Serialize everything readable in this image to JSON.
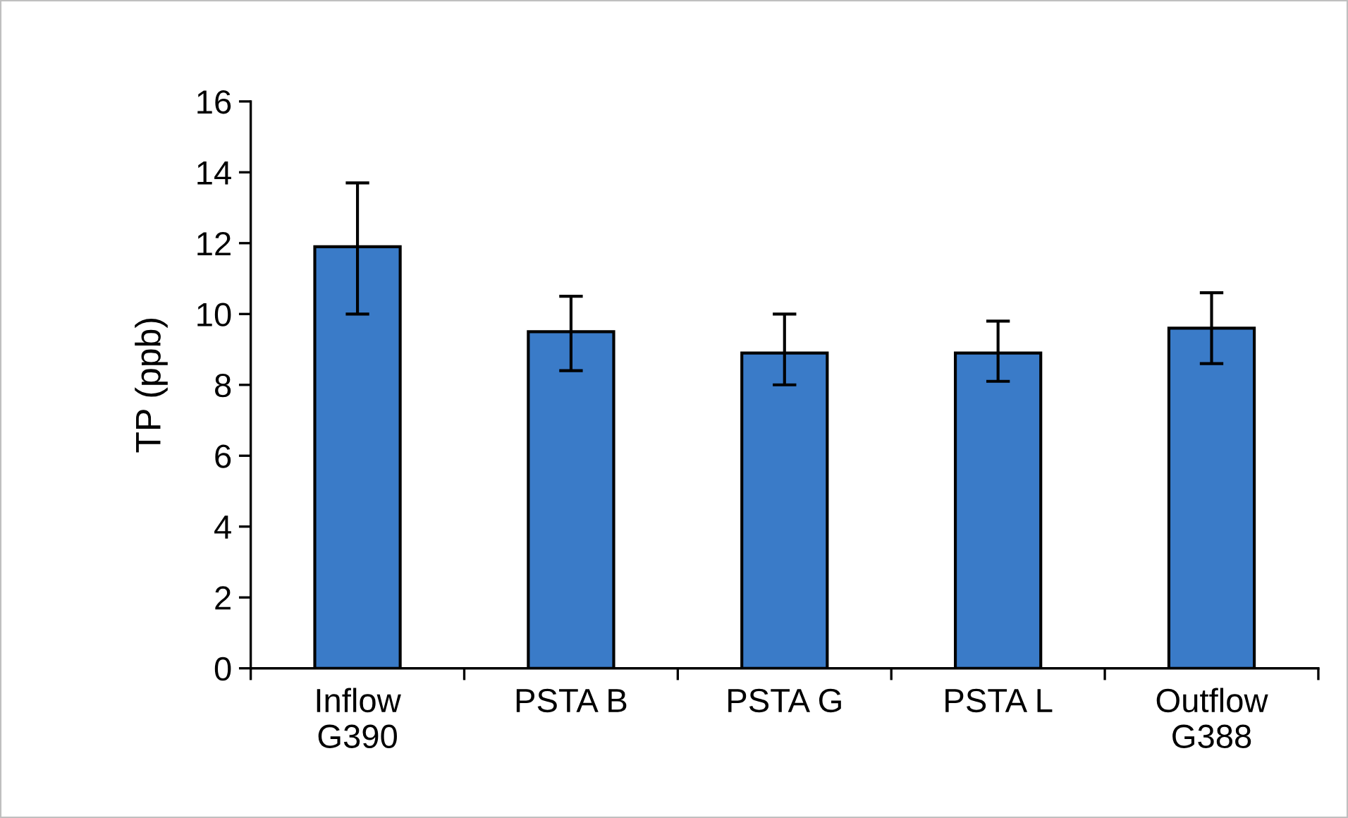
{
  "chart_data": {
    "type": "bar",
    "ylabel": "TP (ppb)",
    "categories": [
      "Inflow\nG390",
      "PSTA B",
      "PSTA G",
      "PSTA L",
      "Outflow\nG388"
    ],
    "values": [
      11.9,
      9.5,
      8.9,
      8.9,
      9.6
    ],
    "errors": [
      [
        10.0,
        13.7
      ],
      [
        8.4,
        10.5
      ],
      [
        8.0,
        10.0
      ],
      [
        8.1,
        9.8
      ],
      [
        8.6,
        10.6
      ]
    ],
    "color": "#3a7bc8",
    "ylim": [
      0,
      16
    ],
    "yticks": [
      0,
      2,
      4,
      6,
      8,
      10,
      12,
      14,
      16
    ],
    "grid": false
  }
}
